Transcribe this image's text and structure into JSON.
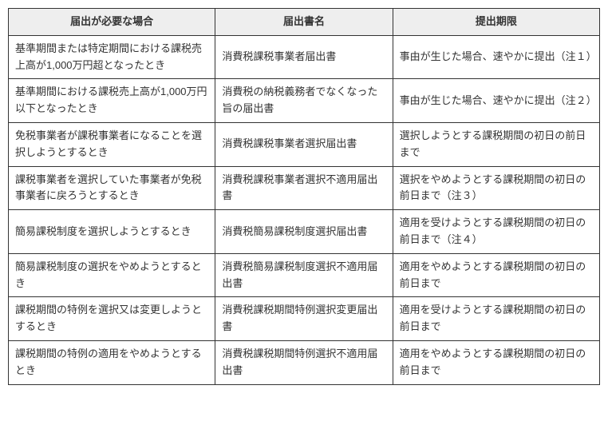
{
  "table": {
    "columns": [
      {
        "label": "届出が必要な場合"
      },
      {
        "label": "届出書名"
      },
      {
        "label": "提出期限"
      }
    ],
    "rows": [
      {
        "case": "基準期間または特定期間における課税売上高が1,000万円超となったとき",
        "form": "消費税課税事業者届出書",
        "deadline": "事由が生じた場合、速やかに提出（注１）"
      },
      {
        "case": "基準期間における課税売上高が1,000万円以下となったとき",
        "form": "消費税の納税義務者でなくなった旨の届出書",
        "deadline": "事由が生じた場合、速やかに提出（注２）"
      },
      {
        "case": "免税事業者が課税事業者になることを選択しようとするとき",
        "form": "消費税課税事業者選択届出書",
        "deadline": "選択しようとする課税期間の初日の前日まで"
      },
      {
        "case": "課税事業者を選択していた事業者が免税事業者に戻ろうとするとき",
        "form": "消費税課税事業者選択不適用届出書",
        "deadline": "選択をやめようとする課税期間の初日の前日まで（注３）"
      },
      {
        "case": "簡易課税制度を選択しようとするとき",
        "form": "消費税簡易課税制度選択届出書",
        "deadline": "適用を受けようとする課税期間の初日の前日まで（注４）"
      },
      {
        "case": "簡易課税制度の選択をやめようとするとき",
        "form": "消費税簡易課税制度選択不適用届出書",
        "deadline": "適用をやめようとする課税期間の初日の前日まで"
      },
      {
        "case": "課税期間の特例を選択又は変更しようとするとき",
        "form": "消費税課税期間特例選択変更届出書",
        "deadline": "適用を受けようとする課税期間の初日の前日まで"
      },
      {
        "case": "課税期間の特例の適用をやめようとするとき",
        "form": "消費税課税期間特例選択不適用届出書",
        "deadline": "適用をやめようとする課税期間の初日の前日まで"
      }
    ]
  }
}
